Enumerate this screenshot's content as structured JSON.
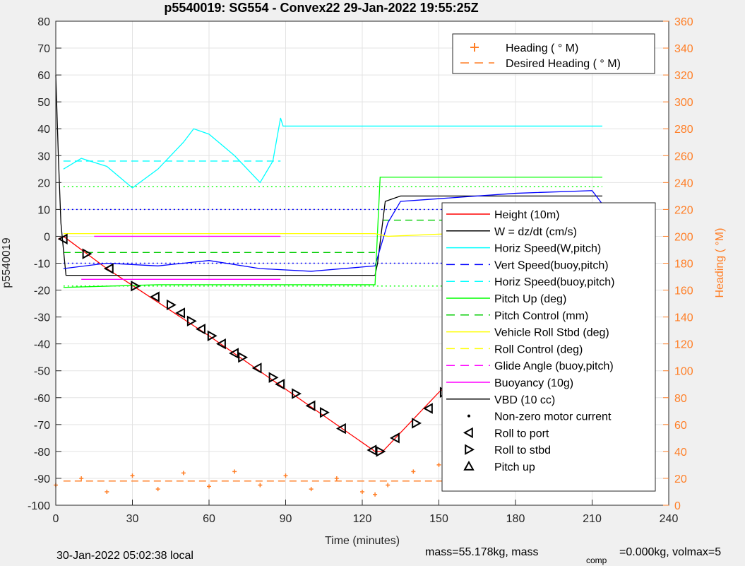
{
  "chart_data": {
    "type": "line",
    "title": "p5540019: SG554 - Convex22 29-Jan-2022 19:55:25Z",
    "xlabel": "Time (minutes)",
    "ylabel_left": "p5540019",
    "ylabel_right": "Heading (  °M)",
    "xlim": [
      0,
      240
    ],
    "ylim_left": [
      -100,
      80
    ],
    "ylim_right": [
      0,
      360
    ],
    "x_ticks": [
      0,
      30,
      60,
      90,
      120,
      150,
      180,
      210,
      240
    ],
    "y_ticks_left": [
      -100,
      -90,
      -80,
      -70,
      -60,
      -50,
      -40,
      -30,
      -20,
      -10,
      0,
      10,
      20,
      30,
      40,
      50,
      60,
      70,
      80
    ],
    "y_ticks_right": [
      0,
      20,
      40,
      60,
      80,
      100,
      120,
      140,
      160,
      180,
      200,
      220,
      240,
      260,
      280,
      300,
      320,
      340,
      360
    ],
    "grid": true,
    "legend_top": {
      "placement": "top-right",
      "entries": [
        {
          "label": "Heading (  ° M)",
          "color": "#ff7f27",
          "style": "plus"
        },
        {
          "label": "Desired Heading (    ° M)",
          "color": "#ff7f27",
          "style": "dashed"
        }
      ]
    },
    "legend_main": {
      "placement": "right",
      "entries": [
        {
          "label": "Height (10m)",
          "color": "#ff0000",
          "style": "line"
        },
        {
          "label": "W = dz/dt (cm/s)",
          "color": "#000000",
          "style": "line"
        },
        {
          "label": "Horiz Speed(W,pitch)",
          "color": "#00ffff",
          "style": "line"
        },
        {
          "label": "Vert Speed(buoy,pitch)",
          "color": "#0000ff",
          "style": "dashed"
        },
        {
          "label": "Horiz Speed(buoy,pitch)",
          "color": "#00ffff",
          "style": "dashed"
        },
        {
          "label": "Pitch Up (deg)",
          "color": "#00ff00",
          "style": "line"
        },
        {
          "label": "Pitch Control (mm)",
          "color": "#00cc00",
          "style": "dashed"
        },
        {
          "label": "Vehicle Roll Stbd (deg)",
          "color": "#ffff00",
          "style": "line"
        },
        {
          "label": "Roll Control (deg)",
          "color": "#ffff00",
          "style": "dashed"
        },
        {
          "label": "Glide Angle (buoy,pitch)",
          "color": "#ff00ff",
          "style": "dashed"
        },
        {
          "label": "Buoyancy (10g)",
          "color": "#ff00ff",
          "style": "line"
        },
        {
          "label": "VBD (10 cc)",
          "color": "#000000",
          "style": "line"
        },
        {
          "label": "Non-zero motor current",
          "color": "#000000",
          "style": "dot"
        },
        {
          "label": "Roll to port",
          "color": "#000000",
          "style": "tri-left"
        },
        {
          "label": "Roll to stbd",
          "color": "#000000",
          "style": "tri-right"
        },
        {
          "label": "Pitch up",
          "color": "#000000",
          "style": "tri-up"
        }
      ]
    },
    "series": [
      {
        "name": "Height (10m)",
        "color": "#ff0000",
        "x": [
          1,
          3,
          20,
          60,
          125,
          128,
          150,
          180,
          213
        ],
        "y": [
          -1,
          0,
          -12,
          -37,
          -80,
          -80,
          -58,
          -35,
          -2
        ]
      },
      {
        "name": "W = dz/dt (cm/s)",
        "color": "#000000",
        "x": [
          0,
          1,
          2,
          3,
          4,
          125,
          126,
          129,
          135,
          214
        ],
        "y": [
          60,
          30,
          5,
          -5,
          -14.5,
          -14.5,
          -10,
          13,
          15,
          15
        ]
      },
      {
        "name": "Horiz Speed(W,pitch)",
        "color": "#00ffff",
        "x": [
          3,
          10,
          20,
          30,
          40,
          50,
          54,
          60,
          70,
          80,
          85,
          88,
          89,
          214
        ],
        "y": [
          25,
          29,
          26,
          18,
          25,
          35,
          40,
          38,
          30,
          20,
          28,
          44,
          41,
          41
        ]
      },
      {
        "name": "Vert Speed(buoy,pitch)",
        "color": "#0000ff",
        "x": [
          3,
          20,
          40,
          60,
          80,
          100,
          125,
          130,
          135,
          150,
          180,
          210,
          214
        ],
        "y": [
          -12,
          -10,
          -11,
          -9,
          -12,
          -13,
          -11,
          5,
          13,
          14,
          16,
          17,
          12
        ]
      },
      {
        "name": "Pitch Up (deg)",
        "color": "#00ff00",
        "x": [
          3,
          40,
          80,
          125,
          127,
          150,
          180,
          214
        ],
        "y": [
          -19,
          -18,
          -18,
          -18,
          22,
          22,
          22,
          22
        ]
      },
      {
        "name": "Vehicle Roll Stbd (deg)",
        "color": "#ffff00",
        "x": [
          3,
          60,
          125,
          130,
          180,
          214
        ],
        "y": [
          1,
          1,
          1,
          0,
          2,
          3
        ]
      },
      {
        "name": "Buoyancy (10g)",
        "color": "#ff00ff",
        "x": [
          10,
          88
        ],
        "y": [
          -16,
          -16
        ]
      },
      {
        "name": "Glide Angle (buoy,pitch)",
        "color": "#ff00ff",
        "x": [
          15,
          88
        ],
        "y": [
          0,
          0
        ]
      },
      {
        "name": "Heading (  ° M)",
        "color": "#ff7f27",
        "x": [
          0,
          10,
          20,
          30,
          40,
          50,
          60,
          70,
          80,
          90,
          100,
          110,
          120,
          125,
          130,
          140,
          150,
          160,
          170,
          180,
          190,
          200,
          214
        ],
        "y_right": [
          15,
          20,
          10,
          22,
          12,
          24,
          14,
          25,
          15,
          22,
          12,
          20,
          10,
          8,
          15,
          25,
          30,
          20,
          30,
          22,
          28,
          20,
          15
        ]
      }
    ],
    "reference_lines": [
      {
        "label": "Horiz Speed(buoy,pitch)",
        "x": [
          3,
          88
        ],
        "y": 28,
        "color": "#00ffff",
        "style": "dashed"
      },
      {
        "label": "Pitch Control (mm)",
        "x": [
          3,
          125
        ],
        "y": -6,
        "color": "#00cc00",
        "style": "dashed"
      },
      {
        "label": "Pitch Control (mm)",
        "x": [
          128,
          214
        ],
        "y": 6,
        "color": "#00cc00",
        "style": "dashed"
      },
      {
        "label": "Desired Heading (    ° M)",
        "x": [
          3,
          214
        ],
        "y_right": 18,
        "color": "#ff7f27",
        "style": "dashed"
      },
      {
        "label": "guide",
        "x": [
          3,
          214
        ],
        "y": 10,
        "color": "#0000ff",
        "style": "dotted"
      },
      {
        "label": "guide",
        "x": [
          3,
          214
        ],
        "y": -10,
        "color": "#0000ff",
        "style": "dotted"
      },
      {
        "label": "guide",
        "x": [
          3,
          214
        ],
        "y": 18.5,
        "color": "#00ff00",
        "style": "dotted"
      },
      {
        "label": "guide",
        "x": [
          3,
          214
        ],
        "y": -18.5,
        "color": "#00ff00",
        "style": "dotted"
      }
    ],
    "roll_markers": [
      {
        "x": 3,
        "y": -1,
        "dir": "left"
      },
      {
        "x": 12,
        "y": -6.5,
        "dir": "right"
      },
      {
        "x": 21,
        "y": -12,
        "dir": "left"
      },
      {
        "x": 31,
        "y": -18.5,
        "dir": "right"
      },
      {
        "x": 39,
        "y": -22.5,
        "dir": "left"
      },
      {
        "x": 45,
        "y": -25.5,
        "dir": "right"
      },
      {
        "x": 49,
        "y": -28.5,
        "dir": "left"
      },
      {
        "x": 53,
        "y": -31.5,
        "dir": "right"
      },
      {
        "x": 57,
        "y": -34.5,
        "dir": "left"
      },
      {
        "x": 61,
        "y": -37,
        "dir": "right"
      },
      {
        "x": 65,
        "y": -40,
        "dir": "left"
      },
      {
        "x": 70,
        "y": -43.5,
        "dir": "left"
      },
      {
        "x": 73,
        "y": -45,
        "dir": "right"
      },
      {
        "x": 79,
        "y": -49,
        "dir": "left"
      },
      {
        "x": 85,
        "y": -52.5,
        "dir": "right"
      },
      {
        "x": 88,
        "y": -55,
        "dir": "left"
      },
      {
        "x": 94,
        "y": -58.5,
        "dir": "right"
      },
      {
        "x": 100,
        "y": -63,
        "dir": "left"
      },
      {
        "x": 105,
        "y": -65.5,
        "dir": "right"
      },
      {
        "x": 112,
        "y": -71.5,
        "dir": "left"
      },
      {
        "x": 124,
        "y": -79.5,
        "dir": "left"
      },
      {
        "x": 127,
        "y": -80,
        "dir": "right"
      },
      {
        "x": 133,
        "y": -75,
        "dir": "left"
      },
      {
        "x": 141,
        "y": -69.5,
        "dir": "right"
      },
      {
        "x": 146,
        "y": -64,
        "dir": "left"
      },
      {
        "x": 152,
        "y": -58,
        "dir": "right"
      },
      {
        "x": 158,
        "y": -53.5,
        "dir": "left"
      },
      {
        "x": 164,
        "y": -47.5,
        "dir": "right"
      },
      {
        "x": 169,
        "y": -43,
        "dir": "left"
      },
      {
        "x": 175,
        "y": -38.5,
        "dir": "right"
      },
      {
        "x": 179,
        "y": -33.5,
        "dir": "left"
      },
      {
        "x": 183,
        "y": -29.5,
        "dir": "right"
      },
      {
        "x": 188,
        "y": -24.5,
        "dir": "left"
      },
      {
        "x": 193,
        "y": -19.5,
        "dir": "right"
      },
      {
        "x": 199,
        "y": -14,
        "dir": "left"
      },
      {
        "x": 205,
        "y": -9,
        "dir": "right"
      },
      {
        "x": 210,
        "y": -4,
        "dir": "left"
      },
      {
        "x": 212,
        "y": -2,
        "dir": "up"
      }
    ]
  },
  "footer": {
    "local_time": "30-Jan-2022 05:02:38 local",
    "mass_text": "mass=55.178kg, mass",
    "comp_sub": "comp",
    "comp_text": "=0.000kg, volmax=5"
  }
}
